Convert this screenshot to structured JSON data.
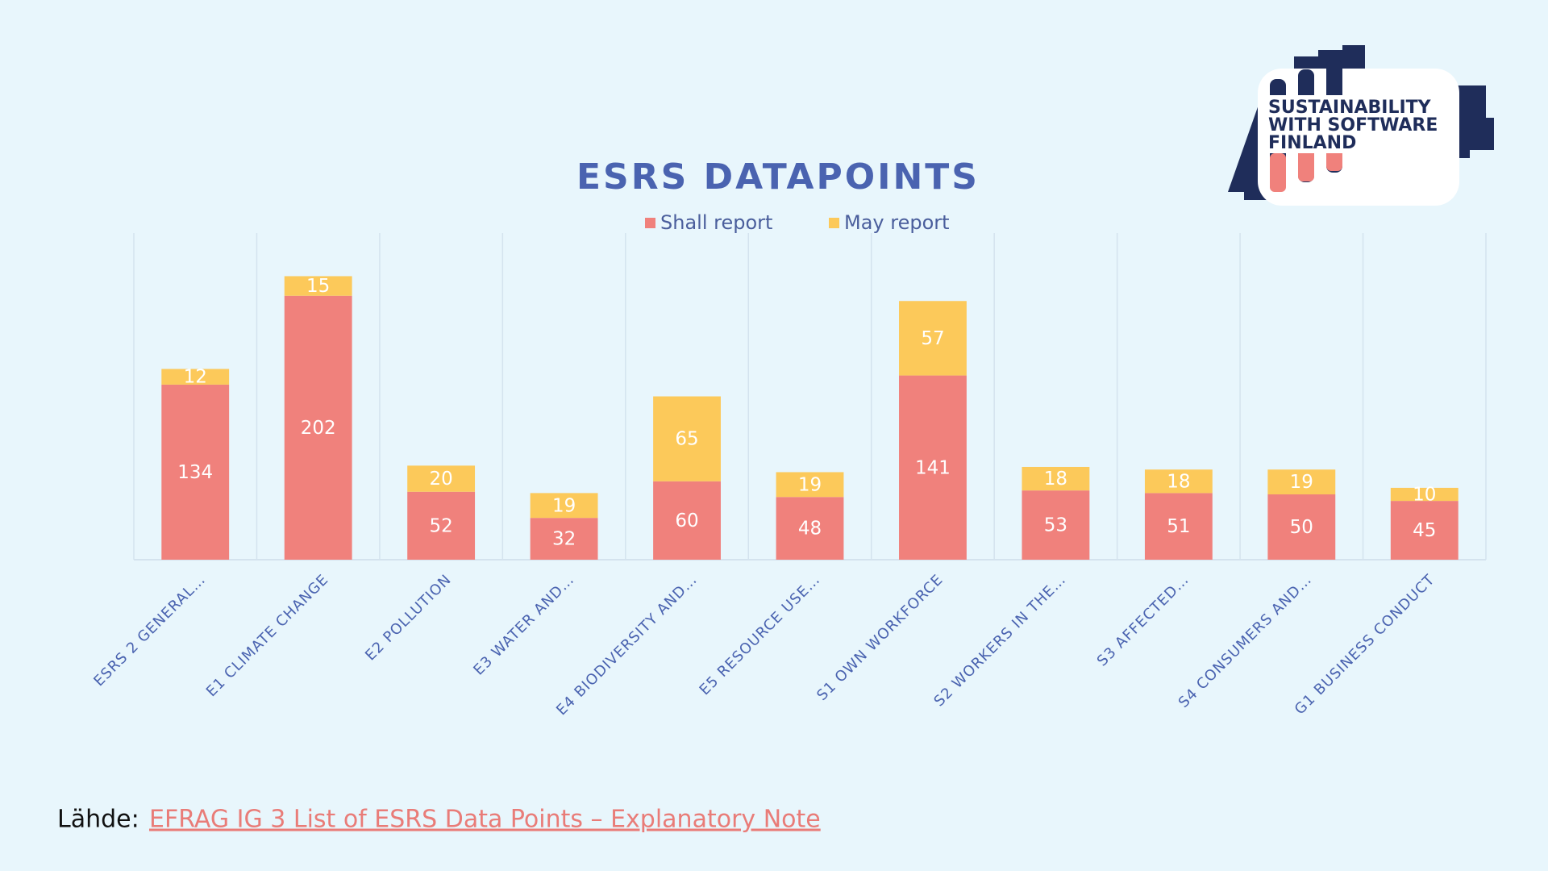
{
  "chart_data": {
    "type": "bar",
    "stacked": true,
    "title": "ESRS DATAPOINTS",
    "categories": [
      "ESRS 2 GENERAL…",
      "E1 CLIMATE CHANGE",
      "E2 POLLUTION",
      "E3 WATER AND…",
      "E4 BIODIVERSITY AND…",
      "E5 RESOURCE USE…",
      "S1 OWN WORKFORCE",
      "S2 WORKERS IN THE…",
      "S3 AFFECTED…",
      "S4 CONSUMERS AND…",
      "G1 BUSINESS CONDUCT"
    ],
    "series": [
      {
        "name": "Shall report",
        "color": "#f0817c",
        "values": [
          134,
          202,
          52,
          32,
          60,
          48,
          141,
          53,
          51,
          50,
          45
        ]
      },
      {
        "name": "May report",
        "color": "#fcc95a",
        "values": [
          12,
          15,
          20,
          19,
          65,
          19,
          57,
          18,
          18,
          19,
          10
        ]
      }
    ],
    "ylim": [
      0,
      250
    ],
    "legend": "top"
  },
  "logo": {
    "lines": [
      "SUSTAINABILITY",
      "WITH SOFTWARE",
      "FINLAND"
    ]
  },
  "footer": {
    "label": "Lähde:",
    "link": "EFRAG IG 3 List of ESRS Data Points – Explanatory Note"
  }
}
